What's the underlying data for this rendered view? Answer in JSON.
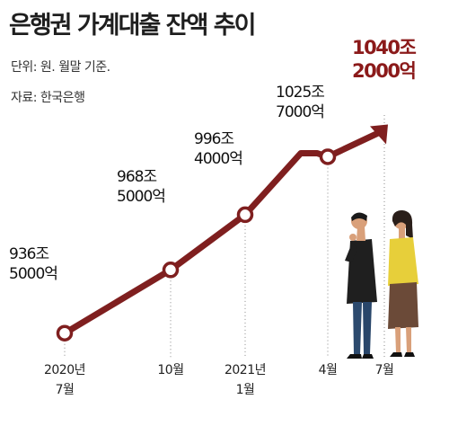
{
  "title": "은행권 가계대출 잔액 추이",
  "unit_note": "단위: 원. 월말 기준.",
  "source_note": "자료: 한국은행",
  "colors": {
    "line": "#7f1f1f",
    "highlight": "#8b1a1a",
    "marker_fill": "#ffffff"
  },
  "chart_data": {
    "type": "line",
    "title": "은행권 가계대출 잔액 추이",
    "xlabel": "",
    "ylabel": "",
    "categories": [
      "2020년 7월",
      "10월",
      "2021년 1월",
      "4월",
      "7월"
    ],
    "tick_labels": [
      [
        "2020년",
        "7월"
      ],
      [
        "10월"
      ],
      [
        "2021년",
        "1월"
      ],
      [
        "4월"
      ],
      [
        "7월"
      ]
    ],
    "series": [
      {
        "values": [
          936.5,
          968.5,
          996.4,
          1025.7,
          1040.2
        ],
        "labels": [
          [
            "936조",
            "5000억"
          ],
          [
            "968조",
            "5000억"
          ],
          [
            "996조",
            "4000억"
          ],
          [
            "1025조",
            "7000억"
          ],
          [
            "1040조",
            "2000억"
          ]
        ]
      }
    ],
    "ylim": [
      930,
      1045
    ],
    "grid": false,
    "legend": "none"
  }
}
